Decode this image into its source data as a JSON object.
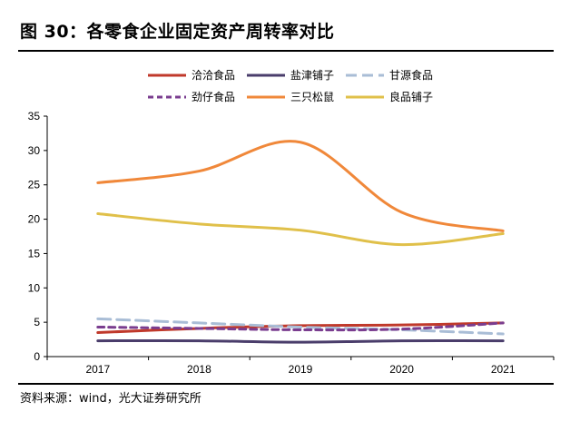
{
  "figure": {
    "title": "图 30：各零食企业固定资产周转率对比",
    "source": "资料来源：wind，光大证券研究所"
  },
  "chart_data": {
    "type": "line",
    "smooth": true,
    "categories": [
      "2017",
      "2018",
      "2019",
      "2020",
      "2021"
    ],
    "ylim": [
      0,
      35
    ],
    "yticks": [
      0,
      5,
      10,
      15,
      20,
      25,
      30,
      35
    ],
    "xlabel": "",
    "ylabel": "",
    "legend_position": "top",
    "series": [
      {
        "name": "洽洽食品",
        "color": "#c0392b",
        "style": "solid",
        "values": [
          3.5,
          4.1,
          4.5,
          4.6,
          4.9
        ]
      },
      {
        "name": "盐津铺子",
        "color": "#4a3d6b",
        "style": "solid",
        "values": [
          2.3,
          2.3,
          2.1,
          2.3,
          2.3
        ]
      },
      {
        "name": "甘源食品",
        "color": "#a9bdd6",
        "style": "dashed",
        "values": [
          5.5,
          4.9,
          4.3,
          3.9,
          3.3
        ]
      },
      {
        "name": "劲仔食品",
        "color": "#7a3d8f",
        "style": "dashed",
        "values": [
          4.3,
          4.1,
          3.9,
          4.0,
          4.9
        ]
      },
      {
        "name": "三只松鼠",
        "color": "#f0883a",
        "style": "solid",
        "values": [
          25.3,
          27.0,
          31.2,
          21.0,
          18.3
        ]
      },
      {
        "name": "良品铺子",
        "color": "#e0c04a",
        "style": "solid",
        "values": [
          20.8,
          19.3,
          18.4,
          16.3,
          17.9
        ]
      }
    ]
  }
}
